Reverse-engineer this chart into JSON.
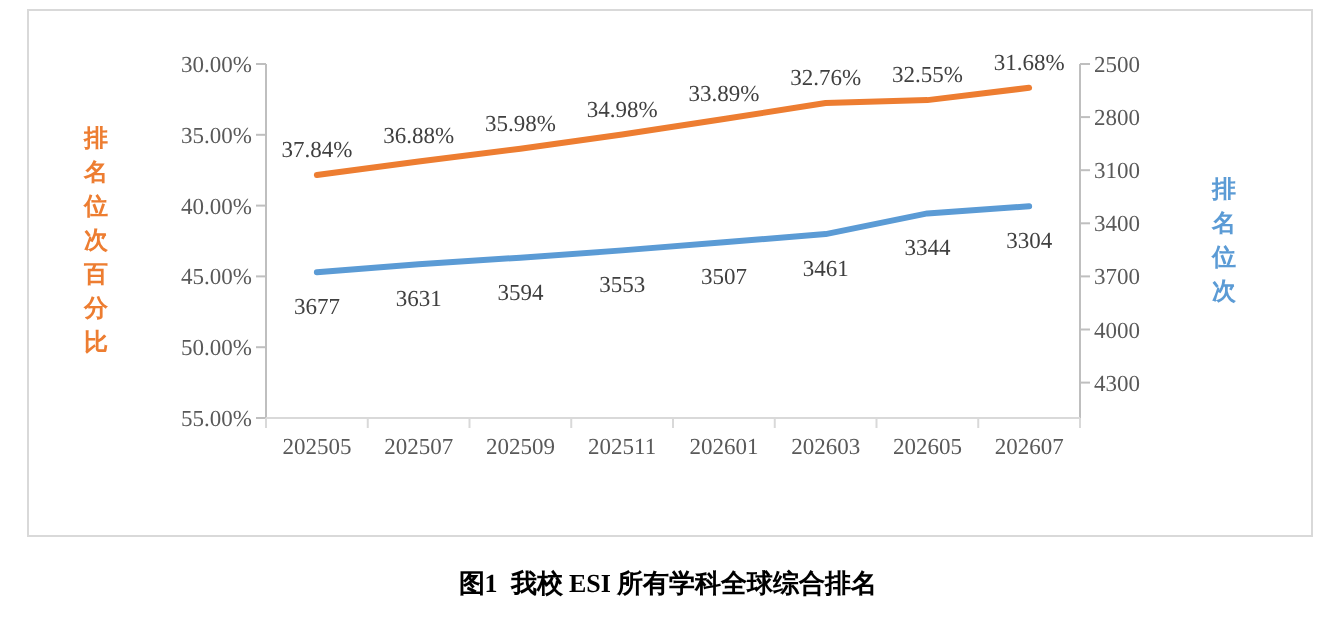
{
  "chart_data": {
    "type": "line",
    "categories": [
      "202505",
      "202507",
      "202509",
      "202511",
      "202601",
      "202603",
      "202605",
      "202607"
    ],
    "series": [
      {
        "color": "#ed7d31",
        "values": [
          37.84,
          36.88,
          35.98,
          34.98,
          33.89,
          32.76,
          32.55,
          31.68
        ],
        "value_labels": [
          "37.84%",
          "36.88%",
          "35.98%",
          "34.98%",
          "33.89%",
          "32.76%",
          "32.55%",
          "31.68%"
        ]
      },
      {
        "color": "#5b9bd5",
        "axis": "y2",
        "values": [
          3677,
          3631,
          3594,
          3553,
          3507,
          3461,
          3344,
          3304
        ],
        "value_labels": [
          "3677",
          "3631",
          "3594",
          "3553",
          "3507",
          "3461",
          "3344",
          "3304"
        ]
      }
    ],
    "ylim": [
      55,
      30
    ],
    "yticks": [
      {
        "value": 30,
        "label": "30.00%"
      },
      {
        "value": 35,
        "label": "35.00%"
      },
      {
        "value": 40,
        "label": "40.00%"
      },
      {
        "value": 45,
        "label": "45.00%"
      },
      {
        "value": 50,
        "label": "50.00%"
      },
      {
        "value": 55,
        "label": "55.00%"
      }
    ],
    "y2lim": [
      4500,
      2500
    ],
    "y2ticks": [
      2500,
      2800,
      3100,
      3400,
      3700,
      4000,
      4300
    ],
    "ylabel": "排名位次百分比",
    "y2label": "排名位次",
    "annotations": [
      "图1  我校 ESI 所有学科全球综合排名"
    ],
    "grid": false,
    "marker": "none",
    "line_style": "solid"
  }
}
